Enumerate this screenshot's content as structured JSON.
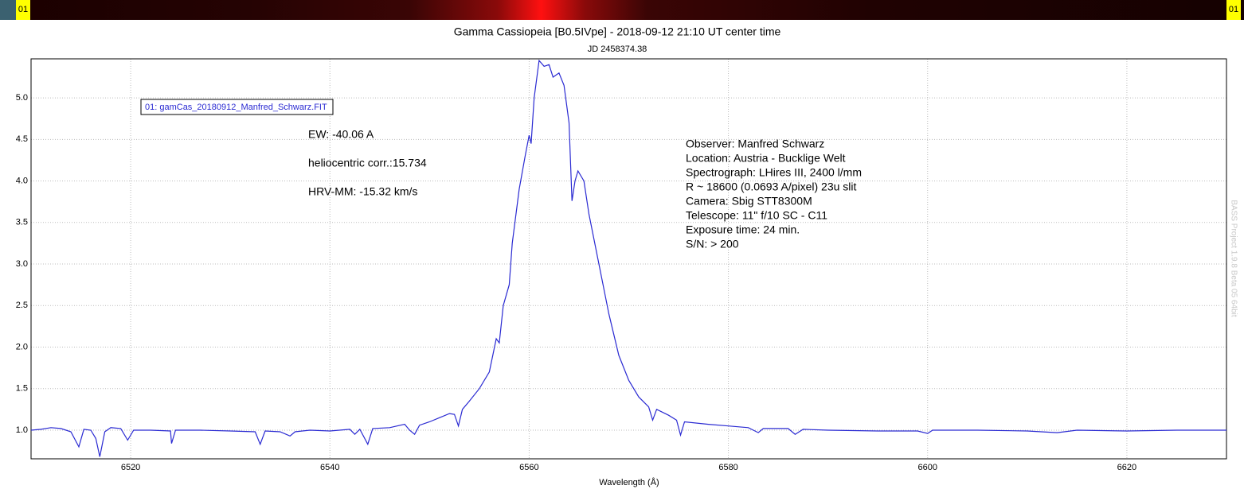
{
  "top_strip": {
    "left_label": "01",
    "right_label": "01"
  },
  "chart_data": {
    "type": "line",
    "title": "Gamma Cassiopeia [B0.5IVpe] - 2018-09-12 21:10 UT center time",
    "subtitle": "JD 2458374.38",
    "x_label": "Wavelength (Å)",
    "x": [
      6510,
      6511,
      6512,
      6513,
      6514,
      6514.8,
      6515.3,
      6516,
      6516.5,
      6516.9,
      6517.4,
      6518,
      6519,
      6519.7,
      6520.3,
      6522,
      6524,
      6524.1,
      6524.5,
      6527,
      6530,
      6532.5,
      6533,
      6533.5,
      6535,
      6536,
      6536.5,
      6538,
      6540,
      6542,
      6542.5,
      6543,
      6543.8,
      6544.3,
      6546,
      6547.5,
      6548,
      6548.5,
      6549,
      6550,
      6551,
      6552,
      6552.5,
      6552.9,
      6553.3,
      6554,
      6555,
      6556,
      6556.7,
      6557,
      6557.4,
      6558,
      6558.3,
      6559,
      6559.6,
      6560,
      6560.2,
      6560.5,
      6561,
      6561.5,
      6562,
      6562.4,
      6563,
      6563.5,
      6564,
      6564.3,
      6564.6,
      6564.9,
      6565.5,
      6566,
      6567,
      6568,
      6569,
      6570,
      6571,
      6572,
      6572.4,
      6572.8,
      6574,
      6574.8,
      6575.2,
      6575.6,
      6578,
      6580,
      6582,
      6583,
      6583.5,
      6586,
      6586.7,
      6587.5,
      6590,
      6595,
      6599,
      6600,
      6600.5,
      6605,
      6610,
      6613,
      6615,
      6620,
      6625,
      6630
    ],
    "series": [
      {
        "name": "01: gamCas_20180912_Manfred_Schwarz.FIT",
        "color": "#2a2ad2",
        "values": [
          1.0,
          1.01,
          1.03,
          1.02,
          0.98,
          0.8,
          1.01,
          1.0,
          0.9,
          0.68,
          0.98,
          1.03,
          1.02,
          0.88,
          1.0,
          1.0,
          0.99,
          0.84,
          1.0,
          1.0,
          0.99,
          0.98,
          0.83,
          0.99,
          0.98,
          0.93,
          0.98,
          1.0,
          0.99,
          1.01,
          0.95,
          1.01,
          0.83,
          1.02,
          1.03,
          1.07,
          1.0,
          0.95,
          1.06,
          1.1,
          1.15,
          1.2,
          1.19,
          1.05,
          1.25,
          1.35,
          1.5,
          1.7,
          2.1,
          2.05,
          2.5,
          2.75,
          3.25,
          3.9,
          4.3,
          4.55,
          4.45,
          5.0,
          5.45,
          5.38,
          5.4,
          5.25,
          5.3,
          5.15,
          4.7,
          3.76,
          4.0,
          4.12,
          4.0,
          3.6,
          3.0,
          2.4,
          1.9,
          1.6,
          1.4,
          1.28,
          1.12,
          1.25,
          1.18,
          1.12,
          0.94,
          1.1,
          1.07,
          1.05,
          1.03,
          0.97,
          1.02,
          1.02,
          0.95,
          1.01,
          1.0,
          0.99,
          0.99,
          0.96,
          1.0,
          1.0,
          0.99,
          0.97,
          1.0,
          0.99,
          1.0,
          1.0
        ]
      }
    ],
    "xlim": [
      6510,
      6630
    ],
    "ylim": [
      0.655,
      5.47
    ],
    "xticks": [
      6520,
      6540,
      6560,
      6580,
      6600,
      6620
    ],
    "yticks": [
      {
        "value": 1,
        "label": "1.0"
      },
      {
        "value": 1.5,
        "label": "1.5"
      },
      {
        "value": 2,
        "label": "2.0"
      },
      {
        "value": 2.5,
        "label": "2.5"
      },
      {
        "value": 3,
        "label": "3.0"
      },
      {
        "value": 3.5,
        "label": "3.5"
      },
      {
        "value": 4,
        "label": "4.0"
      },
      {
        "value": 4.5,
        "label": "4.5"
      },
      {
        "value": 5,
        "label": "5.0"
      }
    ],
    "grid": true,
    "annotations": {
      "measurements": [
        "EW: -40.06 A",
        "heliocentric corr.:15.734",
        "HRV-MM: -15.32 km/s"
      ],
      "observer_info": [
        "Observer: Manfred Schwarz",
        "Location: Austria - Bucklige Welt",
        "Spectrograph: LHires III, 2400 l/mm",
        "R ~ 18600 (0.0693 A/pixel) 23u slit",
        "Camera: Sbig STT8300M",
        "Telescope: 11\" f/10 SC - C11",
        "Exposure time: 24 min.",
        "S/N:  > 200"
      ]
    },
    "watermark": "BASS Project 1.9.8 Beta 05 64bit"
  }
}
